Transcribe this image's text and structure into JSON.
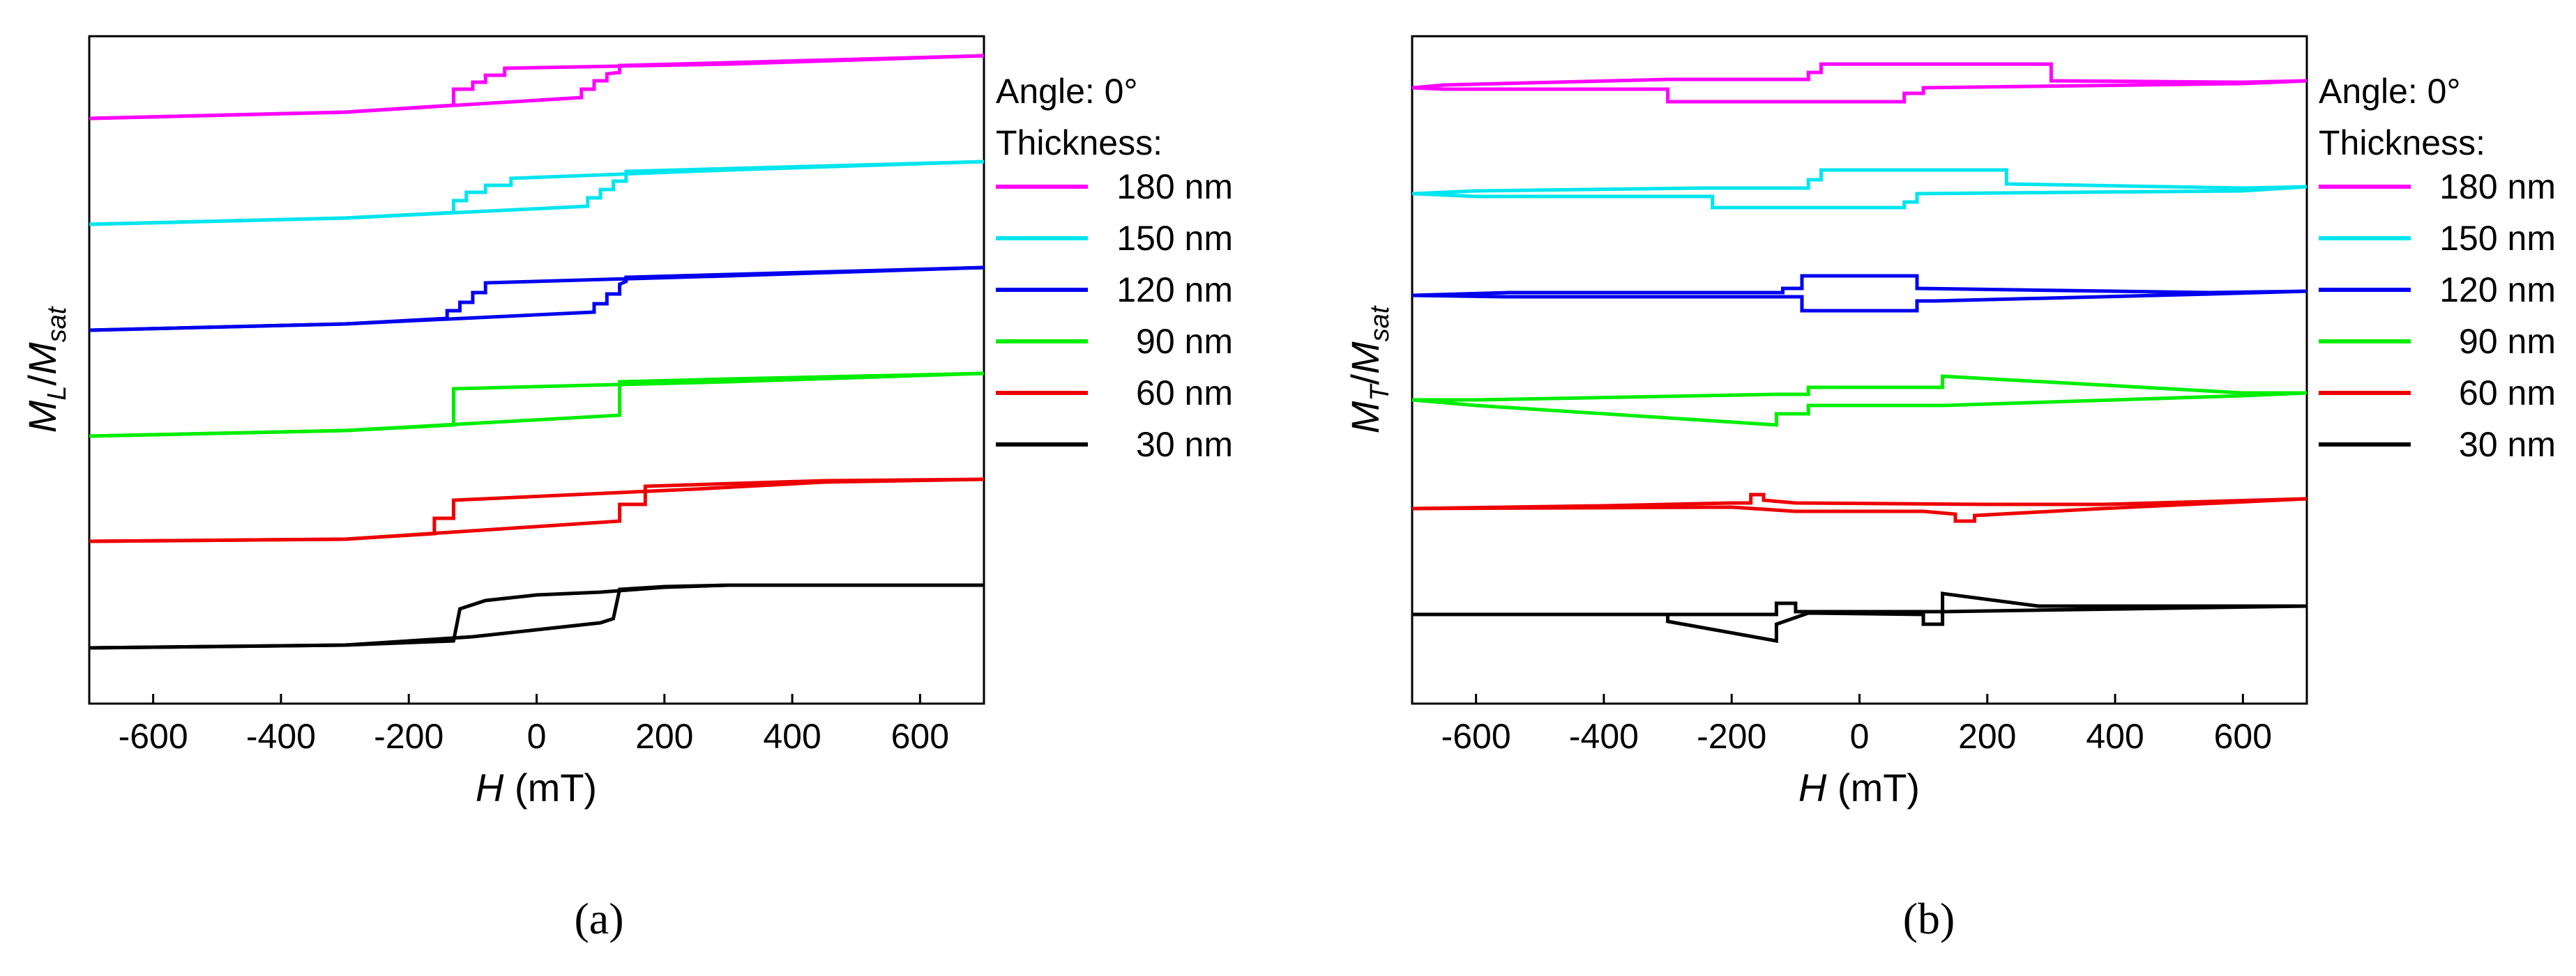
{
  "chart_data": [
    {
      "type": "line",
      "panel_label": "(a)",
      "xlabel": "H (mT)",
      "ylabel": "ML/Msat",
      "xlim": [
        -700,
        700
      ],
      "xticks": [
        -600,
        -400,
        -200,
        0,
        200,
        400,
        600
      ],
      "legend_title_1": "Angle: 0°",
      "legend_title_2": "Thickness:",
      "legend_position": "right",
      "series": [
        {
          "name": "180 nm",
          "color": "#ff00ff",
          "branch_up": [
            [
              -700,
              0.96
            ],
            [
              -300,
              1.05
            ],
            [
              -130,
              1.15
            ],
            [
              -130,
              1.38
            ],
            [
              -100,
              1.38
            ],
            [
              -100,
              1.48
            ],
            [
              -80,
              1.48
            ],
            [
              -80,
              1.58
            ],
            [
              -50,
              1.58
            ],
            [
              -50,
              1.68
            ],
            [
              300,
              1.74
            ],
            [
              700,
              1.86
            ]
          ],
          "branch_down": [
            [
              -700,
              0.96
            ],
            [
              -300,
              1.05
            ],
            [
              70,
              1.26
            ],
            [
              70,
              1.38
            ],
            [
              90,
              1.38
            ],
            [
              90,
              1.5
            ],
            [
              110,
              1.5
            ],
            [
              110,
              1.6
            ],
            [
              130,
              1.62
            ],
            [
              130,
              1.72
            ],
            [
              300,
              1.76
            ],
            [
              700,
              1.86
            ]
          ]
        },
        {
          "name": "150 nm",
          "color": "#00e5ee",
          "branch_up": [
            [
              -700,
              0.96
            ],
            [
              -300,
              1.05
            ],
            [
              -130,
              1.13
            ],
            [
              -130,
              1.3
            ],
            [
              -110,
              1.3
            ],
            [
              -110,
              1.42
            ],
            [
              -80,
              1.42
            ],
            [
              -80,
              1.52
            ],
            [
              -40,
              1.52
            ],
            [
              -40,
              1.62
            ],
            [
              300,
              1.74
            ],
            [
              700,
              1.86
            ]
          ],
          "branch_down": [
            [
              -700,
              0.96
            ],
            [
              -300,
              1.05
            ],
            [
              80,
              1.22
            ],
            [
              80,
              1.34
            ],
            [
              100,
              1.34
            ],
            [
              100,
              1.46
            ],
            [
              120,
              1.46
            ],
            [
              120,
              1.58
            ],
            [
              140,
              1.58
            ],
            [
              140,
              1.72
            ],
            [
              300,
              1.76
            ],
            [
              700,
              1.86
            ]
          ]
        },
        {
          "name": "120 nm",
          "color": "#0000ee",
          "branch_up": [
            [
              -700,
              0.96
            ],
            [
              -300,
              1.05
            ],
            [
              -140,
              1.13
            ],
            [
              -140,
              1.24
            ],
            [
              -120,
              1.24
            ],
            [
              -120,
              1.36
            ],
            [
              -100,
              1.36
            ],
            [
              -100,
              1.5
            ],
            [
              -80,
              1.5
            ],
            [
              -80,
              1.64
            ],
            [
              300,
              1.74
            ],
            [
              700,
              1.86
            ]
          ],
          "branch_down": [
            [
              -700,
              0.96
            ],
            [
              -300,
              1.05
            ],
            [
              90,
              1.22
            ],
            [
              90,
              1.34
            ],
            [
              110,
              1.34
            ],
            [
              110,
              1.48
            ],
            [
              130,
              1.48
            ],
            [
              130,
              1.62
            ],
            [
              140,
              1.66
            ],
            [
              140,
              1.72
            ],
            [
              300,
              1.76
            ],
            [
              700,
              1.86
            ]
          ]
        },
        {
          "name": "90 nm",
          "color": "#00ee00",
          "branch_up": [
            [
              -700,
              0.96
            ],
            [
              -300,
              1.04
            ],
            [
              -130,
              1.12
            ],
            [
              -130,
              1.64
            ],
            [
              300,
              1.74
            ],
            [
              700,
              1.86
            ]
          ],
          "branch_down": [
            [
              -700,
              0.96
            ],
            [
              -300,
              1.04
            ],
            [
              130,
              1.26
            ],
            [
              130,
              1.74
            ],
            [
              300,
              1.78
            ],
            [
              700,
              1.86
            ]
          ]
        },
        {
          "name": "60 nm",
          "color": "#ee0000",
          "branch_up": [
            [
              -700,
              0.97
            ],
            [
              -300,
              1.0
            ],
            [
              -160,
              1.08
            ],
            [
              -160,
              1.3
            ],
            [
              -130,
              1.3
            ],
            [
              -130,
              1.56
            ],
            [
              250,
              1.72
            ],
            [
              450,
              1.82
            ],
            [
              700,
              1.86
            ]
          ],
          "branch_down": [
            [
              -700,
              0.97
            ],
            [
              -300,
              1.0
            ],
            [
              130,
              1.26
            ],
            [
              130,
              1.5
            ],
            [
              170,
              1.5
            ],
            [
              170,
              1.76
            ],
            [
              450,
              1.84
            ],
            [
              700,
              1.86
            ]
          ]
        },
        {
          "name": "30 nm",
          "color": "#000000",
          "branch_up": [
            [
              -700,
              0.96
            ],
            [
              -300,
              1.0
            ],
            [
              -130,
              1.06
            ],
            [
              -120,
              1.52
            ],
            [
              -80,
              1.64
            ],
            [
              0,
              1.72
            ],
            [
              100,
              1.76
            ],
            [
              200,
              1.83
            ],
            [
              300,
              1.86
            ],
            [
              700,
              1.86
            ]
          ],
          "branch_down": [
            [
              -700,
              0.96
            ],
            [
              -300,
              1.0
            ],
            [
              -100,
              1.12
            ],
            [
              0,
              1.22
            ],
            [
              100,
              1.32
            ],
            [
              120,
              1.38
            ],
            [
              130,
              1.8
            ],
            [
              200,
              1.84
            ],
            [
              300,
              1.86
            ],
            [
              700,
              1.86
            ]
          ]
        }
      ]
    },
    {
      "type": "line",
      "panel_label": "(b)",
      "xlabel": "H (mT)",
      "ylabel": "MT/Msat",
      "xlim": [
        -700,
        700
      ],
      "xticks": [
        -600,
        -400,
        -200,
        0,
        200,
        400,
        600
      ],
      "legend_title_1": "Angle: 0°",
      "legend_title_2": "Thickness:",
      "legend_position": "right",
      "series": [
        {
          "name": "180 nm",
          "color": "#ff00ff",
          "branch_up": [
            [
              -700,
              1.4
            ],
            [
              -650,
              1.44
            ],
            [
              -300,
              1.52
            ],
            [
              -80,
              1.52
            ],
            [
              -80,
              1.62
            ],
            [
              -60,
              1.62
            ],
            [
              -60,
              1.74
            ],
            [
              300,
              1.74
            ],
            [
              300,
              1.5
            ],
            [
              600,
              1.48
            ],
            [
              700,
              1.5
            ]
          ],
          "branch_down": [
            [
              -700,
              1.4
            ],
            [
              -650,
              1.38
            ],
            [
              -300,
              1.38
            ],
            [
              -300,
              1.2
            ],
            [
              70,
              1.2
            ],
            [
              70,
              1.32
            ],
            [
              100,
              1.32
            ],
            [
              100,
              1.4
            ],
            [
              600,
              1.46
            ],
            [
              700,
              1.5
            ]
          ]
        },
        {
          "name": "150 nm",
          "color": "#00e5ee",
          "branch_up": [
            [
              -700,
              1.4
            ],
            [
              -600,
              1.44
            ],
            [
              -250,
              1.48
            ],
            [
              -80,
              1.48
            ],
            [
              -80,
              1.6
            ],
            [
              -60,
              1.6
            ],
            [
              -60,
              1.74
            ],
            [
              230,
              1.74
            ],
            [
              230,
              1.54
            ],
            [
              600,
              1.48
            ],
            [
              700,
              1.5
            ]
          ],
          "branch_down": [
            [
              -700,
              1.4
            ],
            [
              -600,
              1.36
            ],
            [
              -230,
              1.36
            ],
            [
              -230,
              1.2
            ],
            [
              70,
              1.2
            ],
            [
              70,
              1.28
            ],
            [
              90,
              1.28
            ],
            [
              90,
              1.4
            ],
            [
              600,
              1.44
            ],
            [
              700,
              1.5
            ]
          ]
        },
        {
          "name": "120 nm",
          "color": "#0000ee",
          "branch_up": [
            [
              -700,
              1.46
            ],
            [
              -550,
              1.5
            ],
            [
              -120,
              1.5
            ],
            [
              -120,
              1.56
            ],
            [
              -90,
              1.56
            ],
            [
              -90,
              1.74
            ],
            [
              90,
              1.74
            ],
            [
              90,
              1.56
            ],
            [
              550,
              1.5
            ],
            [
              700,
              1.52
            ]
          ],
          "branch_down": [
            [
              -700,
              1.46
            ],
            [
              -550,
              1.44
            ],
            [
              -120,
              1.44
            ],
            [
              -90,
              1.44
            ],
            [
              -90,
              1.24
            ],
            [
              90,
              1.24
            ],
            [
              90,
              1.38
            ],
            [
              120,
              1.38
            ],
            [
              550,
              1.48
            ],
            [
              700,
              1.52
            ]
          ]
        },
        {
          "name": "90 nm",
          "color": "#00ee00",
          "branch_up": [
            [
              -700,
              1.48
            ],
            [
              -600,
              1.48
            ],
            [
              -130,
              1.56
            ],
            [
              -80,
              1.56
            ],
            [
              -80,
              1.66
            ],
            [
              130,
              1.66
            ],
            [
              130,
              1.82
            ],
            [
              600,
              1.58
            ],
            [
              700,
              1.58
            ]
          ],
          "branch_down": [
            [
              -700,
              1.48
            ],
            [
              -600,
              1.4
            ],
            [
              -130,
              1.12
            ],
            [
              -130,
              1.28
            ],
            [
              -80,
              1.28
            ],
            [
              -80,
              1.4
            ],
            [
              130,
              1.4
            ],
            [
              600,
              1.54
            ],
            [
              700,
              1.58
            ]
          ]
        },
        {
          "name": "60 nm",
          "color": "#ee0000",
          "branch_up": [
            [
              -700,
              1.44
            ],
            [
              -400,
              1.48
            ],
            [
              -200,
              1.52
            ],
            [
              -170,
              1.52
            ],
            [
              -170,
              1.64
            ],
            [
              -150,
              1.64
            ],
            [
              -150,
              1.56
            ],
            [
              -100,
              1.52
            ],
            [
              200,
              1.5
            ],
            [
              380,
              1.5
            ],
            [
              700,
              1.58
            ]
          ],
          "branch_down": [
            [
              -700,
              1.44
            ],
            [
              -200,
              1.46
            ],
            [
              -100,
              1.4
            ],
            [
              100,
              1.4
            ],
            [
              150,
              1.36
            ],
            [
              150,
              1.26
            ],
            [
              180,
              1.26
            ],
            [
              180,
              1.34
            ],
            [
              380,
              1.44
            ],
            [
              700,
              1.58
            ]
          ]
        },
        {
          "name": "30 nm",
          "color": "#000000",
          "branch_up": [
            [
              -700,
              1.44
            ],
            [
              -200,
              1.44
            ],
            [
              -130,
              1.44
            ],
            [
              -130,
              1.6
            ],
            [
              -100,
              1.6
            ],
            [
              -100,
              1.48
            ],
            [
              100,
              1.48
            ],
            [
              130,
              1.48
            ],
            [
              130,
              1.74
            ],
            [
              280,
              1.56
            ],
            [
              700,
              1.56
            ]
          ],
          "branch_down": [
            [
              -700,
              1.44
            ],
            [
              -300,
              1.44
            ],
            [
              -300,
              1.34
            ],
            [
              -130,
              1.06
            ],
            [
              -130,
              1.3
            ],
            [
              -80,
              1.46
            ],
            [
              100,
              1.44
            ],
            [
              100,
              1.3
            ],
            [
              130,
              1.3
            ],
            [
              130,
              1.48
            ],
            [
              700,
              1.56
            ]
          ]
        }
      ]
    }
  ]
}
